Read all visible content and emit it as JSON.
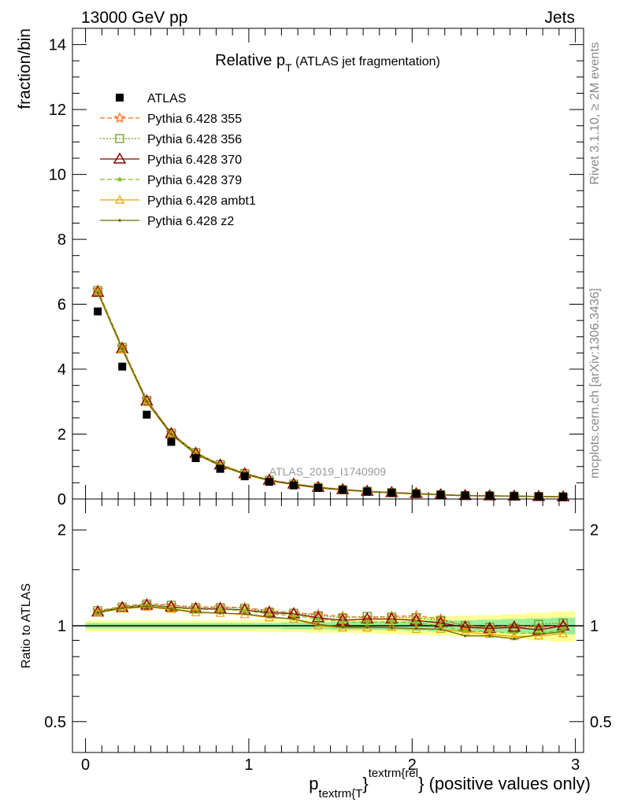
{
  "header": {
    "left": "13000 GeV pp",
    "right": "Jets"
  },
  "side_labels": {
    "top": "Rivet 3.1.10, ≥ 2M events",
    "bottom": "mcplots.cern.ch [arXiv:1306.3436]"
  },
  "chart_data": [
    {
      "type": "scatter",
      "title_main": "Relative p",
      "title_sub": "T",
      "title_rest": " (ATLAS jet fragmentation)",
      "ylabel": "fraction/bin",
      "watermark": "ATLAS_2019_I1740909",
      "xlim": [
        -0.08,
        3.05
      ],
      "ylim": [
        0,
        14.5
      ],
      "yticks": [
        0,
        2,
        4,
        6,
        8,
        10,
        12,
        14
      ],
      "ytick_labels": [
        "0",
        "2",
        "4",
        "6",
        "8",
        "10",
        "12",
        "14"
      ],
      "x": [
        0.075,
        0.225,
        0.375,
        0.525,
        0.675,
        0.825,
        0.975,
        1.125,
        1.275,
        1.425,
        1.575,
        1.725,
        1.875,
        2.025,
        2.175,
        2.325,
        2.475,
        2.625,
        2.775,
        2.925
      ],
      "series": [
        {
          "name": "ATLAS",
          "color": "#000000",
          "marker": "square",
          "values": [
            5.78,
            4.08,
            2.6,
            1.76,
            1.26,
            0.93,
            0.7,
            0.53,
            0.42,
            0.34,
            0.28,
            0.23,
            0.19,
            0.16,
            0.13,
            0.11,
            0.1,
            0.09,
            0.08,
            0.07
          ]
        },
        {
          "name": "Pythia 6.428 355",
          "color": "#ff6a1a",
          "marker": "star",
          "dash": "6,3",
          "values": [
            6.44,
            4.69,
            3.06,
            2.04,
            1.44,
            1.07,
            0.8,
            0.59,
            0.47,
            0.37,
            0.3,
            0.24,
            0.2,
            0.17,
            0.135,
            0.11,
            0.1,
            0.09,
            0.08,
            0.07
          ]
        },
        {
          "name": "Pythia 6.428 356",
          "color": "#6f9a1b",
          "marker": "open-square",
          "dash": "2,2",
          "values": [
            6.42,
            4.67,
            3.04,
            2.03,
            1.43,
            1.06,
            0.79,
            0.58,
            0.46,
            0.36,
            0.29,
            0.24,
            0.2,
            0.17,
            0.133,
            0.11,
            0.1,
            0.09,
            0.08,
            0.07
          ]
        },
        {
          "name": "Pythia 6.428 370",
          "color": "#8b0000",
          "marker": "open-triangle",
          "values": [
            6.37,
            4.63,
            3.02,
            2.02,
            1.41,
            1.05,
            0.78,
            0.58,
            0.46,
            0.36,
            0.29,
            0.24,
            0.2,
            0.17,
            0.133,
            0.11,
            0.1,
            0.09,
            0.078,
            0.07
          ]
        },
        {
          "name": "Pythia 6.428 379",
          "color": "#7fbf1f",
          "marker": "small-star",
          "dash": "6,3",
          "values": [
            6.4,
            4.65,
            3.02,
            2.01,
            1.42,
            1.05,
            0.78,
            0.57,
            0.45,
            0.355,
            0.285,
            0.235,
            0.195,
            0.165,
            0.13,
            0.105,
            0.095,
            0.085,
            0.076,
            0.068
          ]
        },
        {
          "name": "Pythia 6.428 ambt1",
          "color": "#f0a000",
          "marker": "open-triangle-small",
          "values": [
            6.38,
            4.61,
            2.98,
            1.98,
            1.38,
            1.02,
            0.76,
            0.56,
            0.44,
            0.34,
            0.275,
            0.225,
            0.185,
            0.155,
            0.126,
            0.1,
            0.093,
            0.083,
            0.074,
            0.066
          ]
        },
        {
          "name": "Pythia 6.428 z2",
          "color": "#6b6b00",
          "marker": "dot",
          "values": [
            6.36,
            4.62,
            3.0,
            1.99,
            1.39,
            1.03,
            0.77,
            0.565,
            0.445,
            0.345,
            0.28,
            0.23,
            0.19,
            0.16,
            0.128,
            0.102,
            0.094,
            0.084,
            0.075,
            0.067
          ]
        }
      ]
    },
    {
      "type": "line",
      "ylabel": "Ratio to ATLAS",
      "xlabel_main": "p",
      "xlabel_sub": "textrm{T",
      "xlabel_mid": "}",
      "xlabel_sup": "textrm{rel",
      "xlabel_tail": "} (positive values only)",
      "xlim": [
        -0.08,
        3.05
      ],
      "ylim": [
        0.4,
        2.5
      ],
      "log_y": true,
      "yticks": [
        0.5,
        1,
        2
      ],
      "ytick_labels": [
        "0.5",
        "1",
        "2"
      ],
      "xticks": [
        0,
        1,
        2,
        3
      ],
      "xtick_labels": [
        "0",
        "1",
        "2",
        "3"
      ],
      "x": [
        0.075,
        0.225,
        0.375,
        0.525,
        0.675,
        0.825,
        0.975,
        1.125,
        1.275,
        1.425,
        1.575,
        1.725,
        1.875,
        2.025,
        2.175,
        2.325,
        2.475,
        2.625,
        2.775,
        2.925
      ],
      "band_inner": [
        0.02,
        0.02,
        0.02,
        0.02,
        0.02,
        0.02,
        0.02,
        0.02,
        0.025,
        0.025,
        0.03,
        0.03,
        0.03,
        0.035,
        0.04,
        0.04,
        0.045,
        0.05,
        0.055,
        0.06
      ],
      "band_outer": [
        0.04,
        0.04,
        0.04,
        0.04,
        0.04,
        0.04,
        0.04,
        0.045,
        0.045,
        0.05,
        0.05,
        0.055,
        0.06,
        0.065,
        0.07,
        0.075,
        0.08,
        0.09,
        0.1,
        0.11
      ],
      "series": [
        {
          "name": "Pythia 6.428 355",
          "color": "#ff6a1a",
          "marker": "star",
          "dash": "6,3",
          "values": [
            1.115,
            1.15,
            1.175,
            1.16,
            1.145,
            1.145,
            1.14,
            1.115,
            1.1,
            1.085,
            1.07,
            1.06,
            1.07,
            1.075,
            1.05,
            1.0,
            0.99,
            1.0,
            0.99,
            1.0
          ]
        },
        {
          "name": "Pythia 6.428 356",
          "color": "#6f9a1b",
          "marker": "open-square",
          "dash": "2,2",
          "values": [
            1.115,
            1.145,
            1.17,
            1.16,
            1.14,
            1.14,
            1.135,
            1.105,
            1.095,
            1.075,
            1.06,
            1.07,
            1.065,
            1.06,
            1.04,
            1.0,
            0.99,
            0.98,
            1.01,
            1.02
          ]
        },
        {
          "name": "Pythia 6.428 370",
          "color": "#8b0000",
          "marker": "open-triangle",
          "values": [
            1.105,
            1.14,
            1.16,
            1.145,
            1.13,
            1.13,
            1.12,
            1.1,
            1.09,
            1.06,
            1.04,
            1.05,
            1.05,
            1.04,
            1.02,
            0.99,
            0.98,
            0.99,
            0.97,
            1.0
          ]
        },
        {
          "name": "Pythia 6.428 379",
          "color": "#7fbf1f",
          "marker": "small-star",
          "dash": "6,3",
          "values": [
            1.11,
            1.14,
            1.16,
            1.14,
            1.125,
            1.125,
            1.115,
            1.09,
            1.075,
            1.05,
            1.03,
            1.025,
            1.03,
            1.02,
            1.0,
            0.96,
            0.96,
            0.945,
            0.95,
            0.97
          ]
        },
        {
          "name": "Pythia 6.428 ambt1",
          "color": "#f0a000",
          "marker": "open-triangle-small",
          "values": [
            1.1,
            1.13,
            1.145,
            1.125,
            1.1,
            1.095,
            1.085,
            1.06,
            1.05,
            1.0,
            0.985,
            0.985,
            0.99,
            0.975,
            0.975,
            0.955,
            0.94,
            0.925,
            0.93,
            0.945
          ]
        },
        {
          "name": "Pythia 6.428 z2",
          "color": "#6b6b00",
          "marker": "dot",
          "values": [
            1.1,
            1.135,
            1.15,
            1.13,
            1.105,
            1.095,
            1.09,
            1.065,
            1.05,
            1.01,
            0.99,
            0.99,
            0.985,
            0.98,
            0.975,
            0.93,
            0.93,
            0.91,
            0.94,
            0.96
          ]
        }
      ]
    }
  ]
}
